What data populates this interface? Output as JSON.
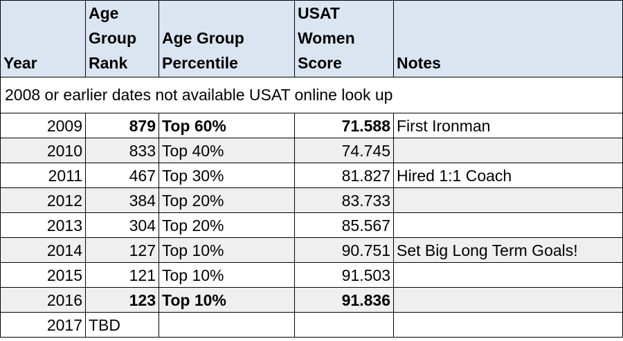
{
  "headers": {
    "year": "Year",
    "rank_line1": "Age",
    "rank_line2": "Group",
    "rank_line3": "Rank",
    "percentile_line1": "Age Group",
    "percentile_line2": "Percentile",
    "score_line1": "USAT",
    "score_line2": "Women",
    "score_line3": "Score",
    "notes": "Notes"
  },
  "note_row": "2008 or earlier dates not available USAT online look up",
  "rows": [
    {
      "year": "2009",
      "rank": "879",
      "percentile": "Top 60%",
      "score": "71.588",
      "notes": "First Ironman",
      "bold": true
    },
    {
      "year": "2010",
      "rank": "833",
      "percentile": "Top 40%",
      "score": "74.745",
      "notes": "",
      "bold": false
    },
    {
      "year": "2011",
      "rank": "467",
      "percentile": "Top 30%",
      "score": "81.827",
      "notes": "Hired 1:1 Coach",
      "bold": false
    },
    {
      "year": "2012",
      "rank": "384",
      "percentile": "Top 20%",
      "score": "83.733",
      "notes": "",
      "bold": false
    },
    {
      "year": "2013",
      "rank": "304",
      "percentile": "Top 20%",
      "score": "85.567",
      "notes": "",
      "bold": false
    },
    {
      "year": "2014",
      "rank": "127",
      "percentile": "Top 10%",
      "score": "90.751",
      "notes": "Set Big Long Term Goals!",
      "bold": false
    },
    {
      "year": "2015",
      "rank": "121",
      "percentile": "Top 10%",
      "score": "91.503",
      "notes": "",
      "bold": false
    },
    {
      "year": "2016",
      "rank": "123",
      "percentile": "Top 10%",
      "score": "91.836",
      "notes": "",
      "bold": true
    },
    {
      "year": "2017",
      "rank": "TBD",
      "percentile": "",
      "score": "",
      "notes": "",
      "bold": false
    }
  ]
}
